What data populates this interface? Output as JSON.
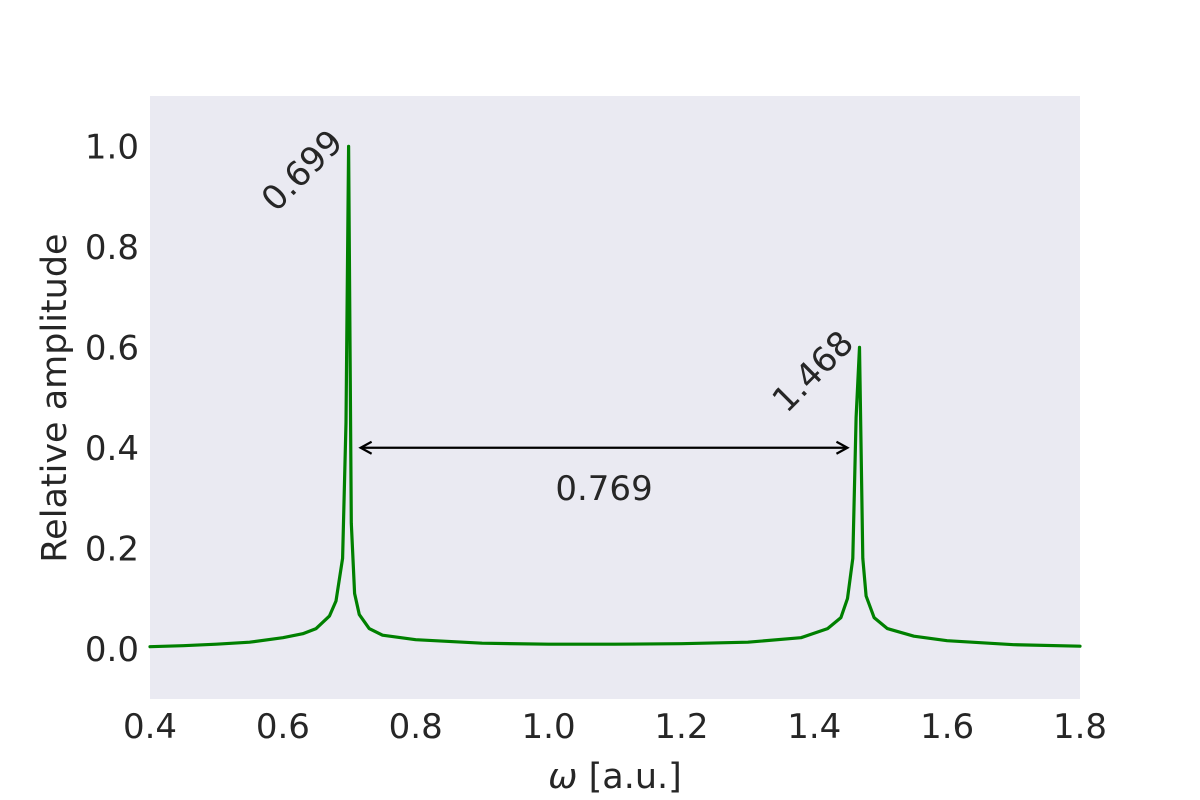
{
  "chart_data": {
    "type": "line",
    "xlabel_symbol": "ω",
    "xlabel_unit": " [a.u.]",
    "ylabel": "Relative amplitude",
    "xlim": [
      0.4,
      1.8
    ],
    "ylim": [
      -0.1,
      1.1
    ],
    "grid": false,
    "background_color": "#eaeaf2",
    "line_color": "#008000",
    "x_ticks": [
      0.4,
      0.6,
      0.8,
      1.0,
      1.2,
      1.4,
      1.6,
      1.8
    ],
    "x_tick_labels": [
      "0.4",
      "0.6",
      "0.8",
      "1.0",
      "1.2",
      "1.4",
      "1.6",
      "1.8"
    ],
    "y_ticks": [
      0.0,
      0.2,
      0.4,
      0.6,
      0.8,
      1.0
    ],
    "y_tick_labels": [
      "0.0",
      "0.2",
      "0.4",
      "0.6",
      "0.8",
      "1.0"
    ],
    "series": [
      {
        "x": [
          0.4,
          0.45,
          0.5,
          0.55,
          0.6,
          0.63,
          0.65,
          0.67,
          0.68,
          0.69,
          0.695,
          0.699,
          0.703,
          0.708,
          0.715,
          0.73,
          0.75,
          0.8,
          0.9,
          1.0,
          1.1,
          1.2,
          1.3,
          1.38,
          1.42,
          1.44,
          1.45,
          1.458,
          1.463,
          1.468,
          1.473,
          1.478,
          1.49,
          1.51,
          1.55,
          1.6,
          1.7,
          1.8
        ],
        "y": [
          0.004,
          0.006,
          0.009,
          0.013,
          0.022,
          0.03,
          0.04,
          0.065,
          0.095,
          0.18,
          0.45,
          1.0,
          0.25,
          0.11,
          0.068,
          0.04,
          0.027,
          0.018,
          0.011,
          0.009,
          0.009,
          0.01,
          0.013,
          0.022,
          0.04,
          0.062,
          0.1,
          0.18,
          0.46,
          0.6,
          0.18,
          0.105,
          0.062,
          0.04,
          0.025,
          0.016,
          0.008,
          0.005
        ]
      }
    ],
    "peaks": [
      {
        "x": 0.699,
        "y": 1.0,
        "label": "0.699"
      },
      {
        "x": 1.468,
        "y": 0.6,
        "label": "1.468"
      }
    ],
    "separation": {
      "x_start": 0.699,
      "x_end": 1.468,
      "y": 0.4,
      "label": "0.769",
      "label_y": 0.32
    }
  }
}
